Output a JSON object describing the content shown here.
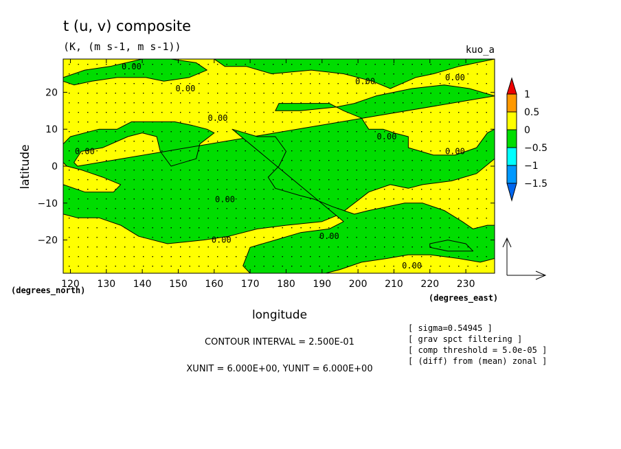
{
  "title": "t (u, v) composite",
  "subtitle": "(K, (m s-1, m s-1))",
  "run_label": "kuo_a",
  "footer": {
    "contour_interval": "CONTOUR INTERVAL = 2.500E-01",
    "units": "XUNIT = 6.000E+00, YUNIT = 6.000E+00"
  },
  "notes": [
    "[ sigma=0.54945 ]",
    "[ grav spct filtering ]",
    "[ comp threshold = 5.0e-05 ]",
    "[ (diff) from (mean) zonal ]"
  ],
  "colors": {
    "positive": "#ffff00",
    "negative": "#00dd00",
    "scale": [
      "#ee0000",
      "#ff9900",
      "#ffff00",
      "#00dd00",
      "#00ffff",
      "#0099ff",
      "#0066ee"
    ]
  },
  "chart_data": {
    "type": "heatmap",
    "subtype": "filled contour with vector field",
    "xlabel": "longitude",
    "ylabel": "latitude",
    "x_unit_label": "(degrees_east)",
    "y_unit_label": "(degrees_north)",
    "xlim": [
      118,
      238
    ],
    "ylim": [
      -29,
      29
    ],
    "x_ticks": [
      120,
      130,
      140,
      150,
      160,
      170,
      180,
      190,
      200,
      210,
      220,
      230
    ],
    "y_ticks": [
      20,
      10,
      0,
      -10,
      -20
    ],
    "contour_labels": [
      {
        "text": "0.00",
        "lon": 137,
        "lat": 27
      },
      {
        "text": "0.00",
        "lon": 152,
        "lat": 21
      },
      {
        "text": "0.00",
        "lon": 161,
        "lat": 13
      },
      {
        "text": "0.00",
        "lon": 202,
        "lat": 23
      },
      {
        "text": "0.00",
        "lon": 227,
        "lat": 24
      },
      {
        "text": "0.00",
        "lon": 124,
        "lat": 4
      },
      {
        "text": "0.00",
        "lon": 208,
        "lat": 8
      },
      {
        "text": "0.00",
        "lon": 227,
        "lat": 4
      },
      {
        "text": "0.00",
        "lon": 163,
        "lat": -9
      },
      {
        "text": "0.00",
        "lon": 162,
        "lat": -20
      },
      {
        "text": "0.00",
        "lon": 192,
        "lat": -19
      },
      {
        "text": "0.00",
        "lon": 215,
        "lat": -27
      }
    ],
    "negative_regions": [
      [
        [
          118,
          24
        ],
        [
          124,
          26
        ],
        [
          131,
          27
        ],
        [
          140,
          29
        ],
        [
          148,
          29
        ],
        [
          155,
          28
        ],
        [
          158,
          26
        ],
        [
          153,
          24
        ],
        [
          146,
          23
        ],
        [
          141,
          24
        ],
        [
          133,
          24
        ],
        [
          126,
          23
        ],
        [
          121,
          22
        ],
        [
          118,
          23
        ]
      ],
      [
        [
          160,
          29
        ],
        [
          163,
          27
        ],
        [
          169,
          27
        ],
        [
          176,
          25
        ],
        [
          187,
          26
        ],
        [
          196,
          25
        ],
        [
          204,
          23
        ],
        [
          209,
          21
        ],
        [
          216,
          24
        ],
        [
          221,
          25
        ],
        [
          228,
          27
        ],
        [
          238,
          29
        ]
      ],
      [
        [
          238,
          19
        ],
        [
          231,
          21
        ],
        [
          224,
          22
        ],
        [
          215,
          21
        ],
        [
          205,
          19
        ],
        [
          199,
          17
        ],
        [
          194,
          16
        ],
        [
          184,
          15
        ],
        [
          177,
          15
        ],
        [
          178,
          17
        ],
        [
          192,
          17
        ],
        [
          196,
          15
        ],
        [
          201,
          13
        ],
        [
          203,
          10
        ],
        [
          207,
          10
        ],
        [
          210,
          9
        ],
        [
          214,
          8
        ],
        [
          214,
          5
        ],
        [
          221,
          3
        ],
        [
          227,
          3
        ],
        [
          233,
          5
        ],
        [
          236,
          9
        ],
        [
          238,
          10
        ],
        [
          238,
          2
        ],
        [
          233,
          -2
        ],
        [
          226,
          -4
        ],
        [
          218,
          -5
        ],
        [
          214,
          -6
        ],
        [
          209,
          -5
        ],
        [
          203,
          -7
        ],
        [
          199,
          -10
        ],
        [
          195,
          -13
        ],
        [
          190,
          -15
        ],
        [
          180,
          -16
        ],
        [
          172,
          -17
        ],
        [
          164,
          -19
        ],
        [
          157,
          -20
        ],
        [
          147,
          -21
        ],
        [
          139,
          -19
        ],
        [
          134,
          -16
        ],
        [
          128,
          -14
        ],
        [
          122,
          -14
        ],
        [
          118,
          -13
        ],
        [
          118,
          -5
        ],
        [
          124,
          -7
        ],
        [
          132,
          -7
        ],
        [
          134,
          -5
        ],
        [
          129,
          -3
        ],
        [
          123,
          -1
        ],
        [
          119,
          0
        ],
        [
          118,
          1
        ],
        [
          118,
          6
        ],
        [
          120,
          8
        ],
        [
          128,
          10
        ],
        [
          133,
          10
        ],
        [
          137,
          12
        ],
        [
          143,
          12
        ],
        [
          149,
          12
        ],
        [
          154,
          11
        ],
        [
          158,
          10
        ],
        [
          160,
          9
        ],
        [
          156,
          6
        ],
        [
          155,
          2
        ],
        [
          148,
          0
        ],
        [
          145,
          4
        ],
        [
          144,
          8
        ],
        [
          140,
          9
        ],
        [
          136,
          8
        ],
        [
          129,
          5
        ],
        [
          123,
          4
        ],
        [
          121,
          1
        ],
        [
          122,
          0
        ]
      ],
      [
        [
          165,
          10
        ],
        [
          172,
          8
        ],
        [
          177,
          8
        ],
        [
          180,
          4
        ],
        [
          178,
          0
        ],
        [
          175,
          -3
        ],
        [
          177,
          -6
        ],
        [
          184,
          -8
        ],
        [
          188,
          -9
        ],
        [
          193,
          -11
        ],
        [
          199,
          -13
        ],
        [
          203,
          -12
        ],
        [
          208,
          -11
        ],
        [
          213,
          -10
        ],
        [
          218,
          -10
        ],
        [
          224,
          -12
        ],
        [
          229,
          -15
        ],
        [
          232,
          -17
        ],
        [
          236,
          -16
        ],
        [
          238,
          -16
        ],
        [
          238,
          -25
        ],
        [
          234,
          -26
        ],
        [
          228,
          -25
        ],
        [
          220,
          -24
        ],
        [
          214,
          -24
        ],
        [
          208,
          -25
        ],
        [
          201,
          -26
        ],
        [
          195,
          -28
        ],
        [
          191,
          -29
        ],
        [
          170,
          -29
        ],
        [
          168,
          -27
        ],
        [
          170,
          -22
        ],
        [
          177,
          -20
        ],
        [
          184,
          -18
        ],
        [
          192,
          -17
        ],
        [
          196,
          -15
        ]
      ],
      [
        [
          220,
          -21
        ],
        [
          225,
          -20
        ],
        [
          230,
          -21
        ],
        [
          232,
          -23
        ],
        [
          225,
          -23
        ],
        [
          220,
          -22
        ]
      ]
    ]
  }
}
